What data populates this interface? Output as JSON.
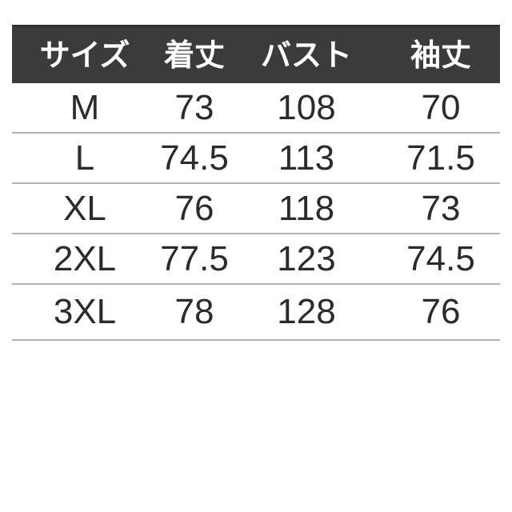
{
  "chart_data": {
    "type": "table",
    "title": "garment size chart",
    "columns": [
      "サイズ",
      "着丈",
      "バスト",
      "袖丈"
    ],
    "rows": [
      [
        "M",
        73,
        108,
        70
      ],
      [
        "L",
        74.5,
        113,
        71.5
      ],
      [
        "XL",
        76,
        118,
        73
      ],
      [
        "2XL",
        77.5,
        123,
        74.5
      ],
      [
        "3XL",
        78,
        128,
        76
      ]
    ],
    "layout": {
      "legend": "none",
      "grid": "horizontal-dividers-only",
      "header_style": "dark-bar-white-serif-text"
    }
  },
  "colors": {
    "header_bg": "#3b3b3b",
    "header_text": "#ffffff",
    "body_text": "#2b2b2b",
    "divider": "#b3b3b3",
    "background": "#ffffff"
  }
}
